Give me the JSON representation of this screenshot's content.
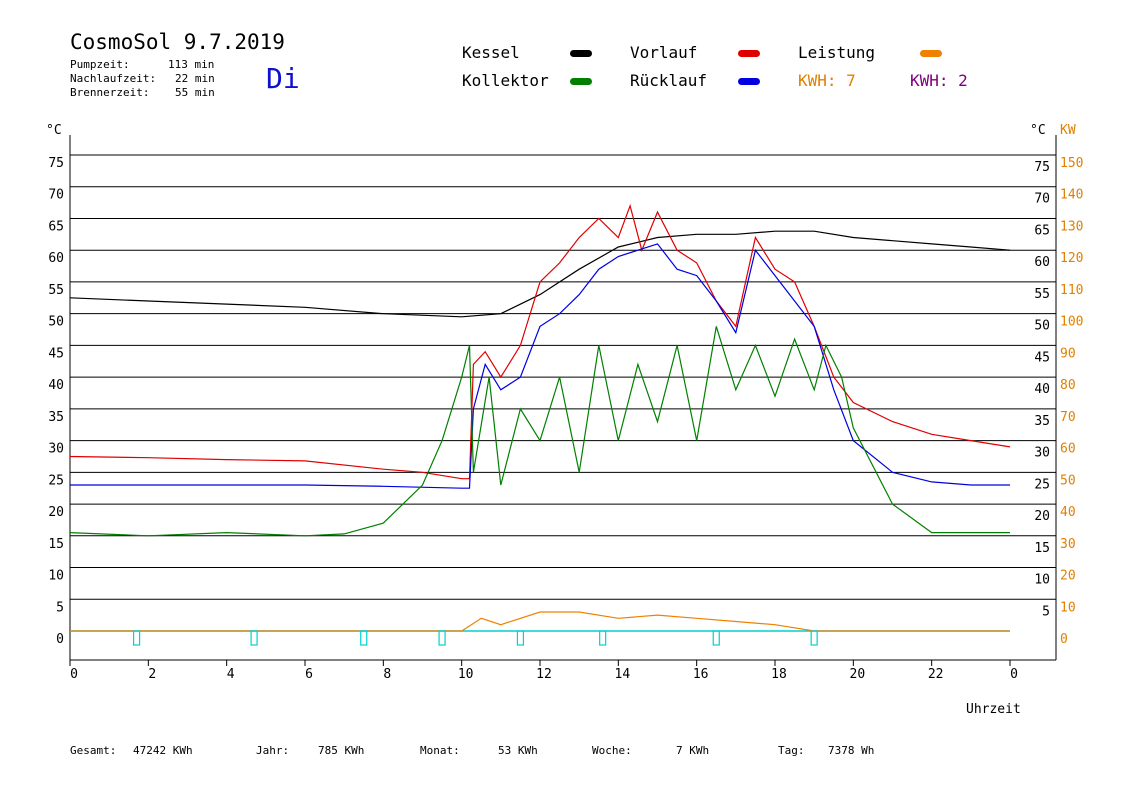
{
  "header": {
    "title": "CosmoSol 9.7.2019",
    "day": "Di",
    "pumpzeit_label": "Pumpzeit:",
    "pumpzeit_value": "113 min",
    "nachlaufzeit_label": "Nachlaufzeit:",
    "nachlaufzeit_value": "22 min",
    "brennerzeit_label": "Brennerzeit:",
    "brennerzeit_value": "55 min"
  },
  "legend": {
    "kessel": {
      "label": "Kessel",
      "color": "#000000"
    },
    "vorlauf": {
      "label": "Vorlauf",
      "color": "#e00000"
    },
    "leistung": {
      "label": "Leistung",
      "color": "#f08000"
    },
    "kollektor": {
      "label": "Kollektor",
      "color": "#008000"
    },
    "ruecklauf": {
      "label": "Rücklauf",
      "color": "#0000e0"
    },
    "kwh1": {
      "label": "KWH: 7",
      "color": "#e08000"
    },
    "kwh2": {
      "label": "KWH: 2",
      "color": "#800080"
    }
  },
  "footer": {
    "gesamt_label": "Gesamt:",
    "gesamt_value": "47242 KWh",
    "jahr_label": "Jahr:",
    "jahr_value": "785 KWh",
    "monat_label": "Monat:",
    "monat_value": "53 KWh",
    "woche_label": "Woche:",
    "woche_value": "7 KWh",
    "tag_label": "Tag:",
    "tag_value": "7378 Wh"
  },
  "chart_data": {
    "type": "line",
    "xlabel": "Uhrzeit",
    "ylabel_left": "°C",
    "ylabel_right_1": "°C",
    "ylabel_right_2": "KW",
    "x_ticks": [
      "0",
      "2",
      "4",
      "6",
      "8",
      "10",
      "12",
      "14",
      "16",
      "18",
      "20",
      "22",
      "0"
    ],
    "x_range": [
      0,
      24
    ],
    "y_range": [
      0,
      75
    ],
    "y_ticks_left": [
      "0",
      "5",
      "10",
      "15",
      "20",
      "25",
      "30",
      "35",
      "40",
      "45",
      "50",
      "55",
      "60",
      "65",
      "70",
      "75"
    ],
    "y_ticks_right": [
      "5",
      "10",
      "15",
      "20",
      "25",
      "30",
      "35",
      "40",
      "45",
      "50",
      "55",
      "60",
      "65",
      "70",
      "75"
    ],
    "kw_ticks": [
      "0",
      "10",
      "20",
      "30",
      "40",
      "50",
      "60",
      "70",
      "80",
      "90",
      "100",
      "110",
      "120",
      "130",
      "140",
      "150"
    ],
    "grid": true,
    "series": [
      {
        "name": "Kessel",
        "color": "#000000",
        "values": [
          [
            0,
            52.5
          ],
          [
            2,
            52
          ],
          [
            4,
            51.5
          ],
          [
            6,
            51
          ],
          [
            8,
            50
          ],
          [
            10,
            49.5
          ],
          [
            11,
            50
          ],
          [
            12,
            53
          ],
          [
            13,
            57
          ],
          [
            14,
            60.5
          ],
          [
            15,
            62
          ],
          [
            16,
            62.5
          ],
          [
            17,
            62.5
          ],
          [
            18,
            63
          ],
          [
            19,
            63
          ],
          [
            20,
            62
          ],
          [
            21,
            61.5
          ],
          [
            22,
            61
          ],
          [
            23,
            60.5
          ],
          [
            24,
            60
          ]
        ]
      },
      {
        "name": "Vorlauf",
        "color": "#e00000",
        "values": [
          [
            0,
            27.5
          ],
          [
            2,
            27.3
          ],
          [
            4,
            27
          ],
          [
            6,
            26.8
          ],
          [
            8,
            25.5
          ],
          [
            9,
            25
          ],
          [
            10,
            24
          ],
          [
            10.2,
            24
          ],
          [
            10.3,
            42
          ],
          [
            10.6,
            44
          ],
          [
            11,
            40
          ],
          [
            11.5,
            45
          ],
          [
            12,
            55
          ],
          [
            12.5,
            58
          ],
          [
            13,
            62
          ],
          [
            13.5,
            65
          ],
          [
            14,
            62
          ],
          [
            14.3,
            67
          ],
          [
            14.6,
            60
          ],
          [
            15,
            66
          ],
          [
            15.5,
            60
          ],
          [
            16,
            58
          ],
          [
            16.5,
            52
          ],
          [
            17,
            48
          ],
          [
            17.5,
            62
          ],
          [
            18,
            57
          ],
          [
            18.5,
            55
          ],
          [
            19,
            48
          ],
          [
            19.5,
            40
          ],
          [
            20,
            36
          ],
          [
            21,
            33
          ],
          [
            22,
            31
          ],
          [
            23,
            30
          ],
          [
            24,
            29
          ]
        ]
      },
      {
        "name": "Rücklauf",
        "color": "#0000e0",
        "values": [
          [
            0,
            23
          ],
          [
            2,
            23
          ],
          [
            4,
            23
          ],
          [
            6,
            23
          ],
          [
            8,
            22.8
          ],
          [
            10,
            22.5
          ],
          [
            10.2,
            22.5
          ],
          [
            10.3,
            35
          ],
          [
            10.6,
            42
          ],
          [
            11,
            38
          ],
          [
            11.5,
            40
          ],
          [
            12,
            48
          ],
          [
            12.5,
            50
          ],
          [
            13,
            53
          ],
          [
            13.5,
            57
          ],
          [
            14,
            59
          ],
          [
            14.5,
            60
          ],
          [
            15,
            61
          ],
          [
            15.5,
            57
          ],
          [
            16,
            56
          ],
          [
            16.5,
            52
          ],
          [
            17,
            47
          ],
          [
            17.5,
            60
          ],
          [
            18,
            56
          ],
          [
            18.5,
            52
          ],
          [
            19,
            48
          ],
          [
            19.5,
            38
          ],
          [
            20,
            30
          ],
          [
            21,
            25
          ],
          [
            22,
            23.5
          ],
          [
            23,
            23
          ],
          [
            24,
            23
          ]
        ]
      },
      {
        "name": "Kollektor",
        "color": "#008000",
        "values": [
          [
            0,
            15.5
          ],
          [
            2,
            15
          ],
          [
            4,
            15.5
          ],
          [
            6,
            15
          ],
          [
            7,
            15.3
          ],
          [
            8,
            17
          ],
          [
            9,
            23
          ],
          [
            9.5,
            30
          ],
          [
            10,
            40
          ],
          [
            10.2,
            45
          ],
          [
            10.3,
            25
          ],
          [
            10.7,
            40
          ],
          [
            11,
            23
          ],
          [
            11.5,
            35
          ],
          [
            12,
            30
          ],
          [
            12.5,
            40
          ],
          [
            13,
            25
          ],
          [
            13.5,
            45
          ],
          [
            14,
            30
          ],
          [
            14.5,
            42
          ],
          [
            15,
            33
          ],
          [
            15.5,
            45
          ],
          [
            16,
            30
          ],
          [
            16.5,
            48
          ],
          [
            17,
            38
          ],
          [
            17.5,
            45
          ],
          [
            18,
            37
          ],
          [
            18.5,
            46
          ],
          [
            19,
            38
          ],
          [
            19.3,
            45
          ],
          [
            19.7,
            40
          ],
          [
            20,
            32
          ],
          [
            21,
            20
          ],
          [
            22,
            15.5
          ],
          [
            23,
            15.5
          ],
          [
            24,
            15.5
          ]
        ]
      },
      {
        "name": "Leistung",
        "color": "#f08000",
        "values": [
          [
            0,
            0
          ],
          [
            10,
            0
          ],
          [
            10.5,
            2
          ],
          [
            11,
            1
          ],
          [
            12,
            3
          ],
          [
            13,
            3
          ],
          [
            14,
            2
          ],
          [
            15,
            2.5
          ],
          [
            16,
            2
          ],
          [
            17,
            1.5
          ],
          [
            18,
            1
          ],
          [
            19,
            0
          ],
          [
            24,
            0
          ]
        ]
      }
    ]
  }
}
